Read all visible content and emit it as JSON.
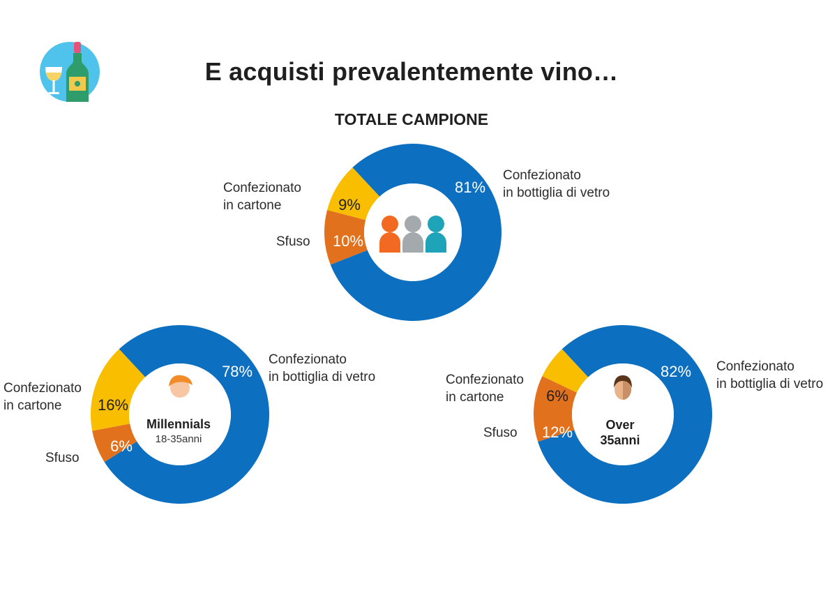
{
  "header": {
    "title": "E acquisti prevalentemente vino…",
    "logo_icon": "wine-bottle-and-glass-icon"
  },
  "colors": {
    "vetro": "#0C6FC0",
    "cartone": "#F9BE00",
    "sfuso": "#E2711D"
  },
  "chart_data": [
    {
      "type": "pie",
      "title": "TOTALE CAMPIONE",
      "donut": true,
      "center_icon": "people-group-icon",
      "center_label": "",
      "center_sublabel": "",
      "series": [
        {
          "name": "Confezionato in bottiglia di vetro",
          "label_lines": [
            "Confezionato",
            "in bottiglia di vetro"
          ],
          "value": 81,
          "value_label": "81%"
        },
        {
          "name": "Confezionato in cartone",
          "label_lines": [
            "Confezionato",
            "in cartone"
          ],
          "value": 9,
          "value_label": "9%"
        },
        {
          "name": "Sfuso",
          "label_lines": [
            "Sfuso"
          ],
          "value": 10,
          "value_label": "10%"
        }
      ]
    },
    {
      "type": "pie",
      "title": "",
      "donut": true,
      "center_icon": "young-person-icon",
      "center_label": "Millennials",
      "center_sublabel": "18-35anni",
      "series": [
        {
          "name": "Confezionato in bottiglia di vetro",
          "label_lines": [
            "Confezionato",
            "in bottiglia di vetro"
          ],
          "value": 78,
          "value_label": "78%"
        },
        {
          "name": "Confezionato in cartone",
          "label_lines": [
            "Confezionato",
            "in cartone"
          ],
          "value": 16,
          "value_label": "16%"
        },
        {
          "name": "Sfuso",
          "label_lines": [
            "Sfuso"
          ],
          "value": 6,
          "value_label": "6%"
        }
      ]
    },
    {
      "type": "pie",
      "title": "",
      "donut": true,
      "center_icon": "adult-person-icon",
      "center_label": "Over 35anni",
      "center_sublabel": "",
      "series": [
        {
          "name": "Confezionato in bottiglia di vetro",
          "label_lines": [
            "Confezionato",
            "in bottiglia di vetro"
          ],
          "value": 82,
          "value_label": "82%"
        },
        {
          "name": "Confezionato in cartone",
          "label_lines": [
            "Confezionato",
            "in cartone"
          ],
          "value": 6,
          "value_label": "6%"
        },
        {
          "name": "Sfuso",
          "label_lines": [
            "Sfuso"
          ],
          "value": 12,
          "value_label": "12%"
        }
      ]
    }
  ]
}
